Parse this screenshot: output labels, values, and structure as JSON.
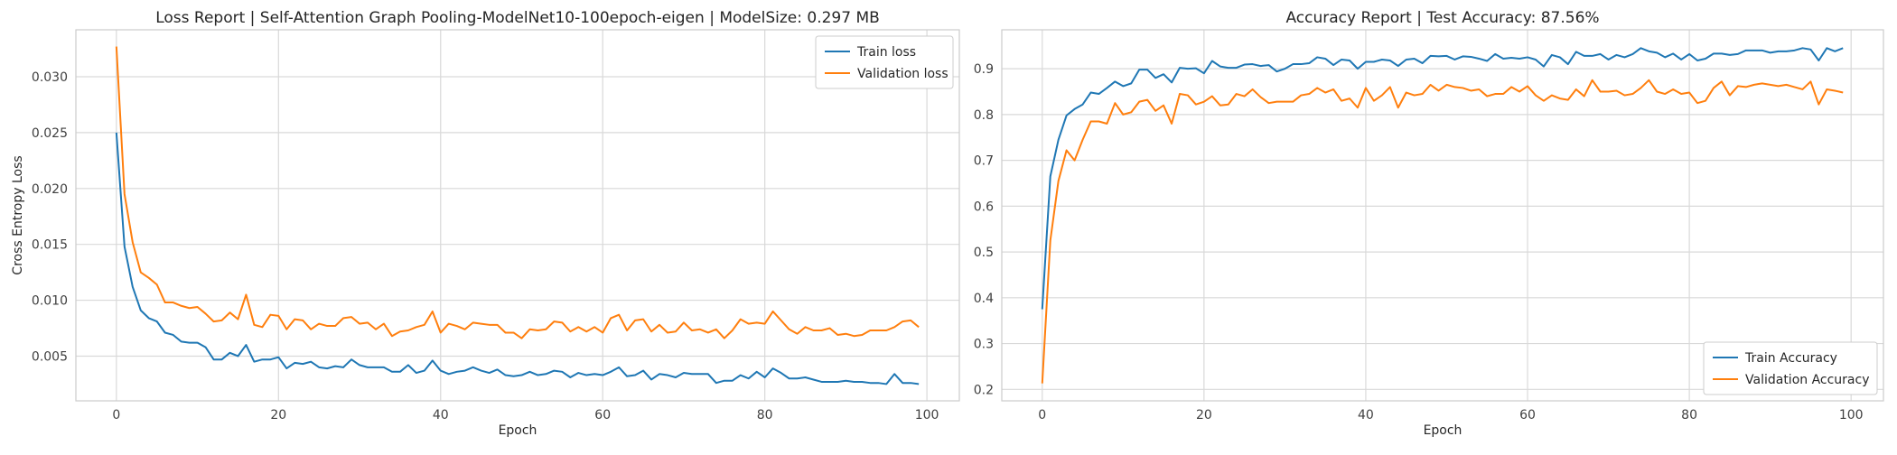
{
  "chart_data": [
    {
      "type": "line",
      "title": "Loss Report | Self-Attention Graph Pooling-ModelNet10-100epoch-eigen | ModelSize: 0.297 MB",
      "xlabel": "Epoch",
      "ylabel": "Cross Entropy Loss",
      "xlim": [
        -5,
        104
      ],
      "ylim": [
        0.001,
        0.0342
      ],
      "xticks": [
        0,
        20,
        40,
        60,
        80,
        100
      ],
      "xtick_labels": [
        "0",
        "20",
        "40",
        "60",
        "80",
        "100"
      ],
      "yticks": [
        0.005,
        0.01,
        0.015,
        0.02,
        0.025,
        0.03
      ],
      "ytick_labels": [
        "0.005",
        "0.010",
        "0.015",
        "0.020",
        "0.025",
        "0.030"
      ],
      "grid": true,
      "legend_position": "top-right",
      "series": [
        {
          "name": "Train loss",
          "color": "#1f77b4",
          "values": [
            0.025,
            0.0148,
            0.0112,
            0.0091,
            0.0084,
            0.0081,
            0.0071,
            0.0069,
            0.0063,
            0.0062,
            0.0062,
            0.0058,
            0.0047,
            0.0047,
            0.0053,
            0.005,
            0.006,
            0.0045,
            0.0047,
            0.0047,
            0.0049,
            0.0039,
            0.0044,
            0.0043,
            0.0045,
            0.004,
            0.0039,
            0.0041,
            0.004,
            0.0047,
            0.0042,
            0.004,
            0.004,
            0.004,
            0.0036,
            0.0036,
            0.0042,
            0.0035,
            0.0037,
            0.0046,
            0.0037,
            0.0034,
            0.0036,
            0.0037,
            0.004,
            0.0037,
            0.0035,
            0.0038,
            0.0033,
            0.0032,
            0.0033,
            0.0036,
            0.0033,
            0.0034,
            0.0037,
            0.0036,
            0.0031,
            0.0035,
            0.0033,
            0.0034,
            0.0033,
            0.0036,
            0.004,
            0.0032,
            0.0033,
            0.0037,
            0.0029,
            0.0034,
            0.0033,
            0.0031,
            0.0035,
            0.0034,
            0.0034,
            0.0034,
            0.0026,
            0.0028,
            0.0028,
            0.0033,
            0.003,
            0.0036,
            0.0031,
            0.0039,
            0.0035,
            0.003,
            0.003,
            0.0031,
            0.0029,
            0.0027,
            0.0027,
            0.0027,
            0.0028,
            0.0027,
            0.0027,
            0.0026,
            0.0026,
            0.0025,
            0.0034,
            0.0026,
            0.0026,
            0.0025
          ]
        },
        {
          "name": "Validation loss",
          "color": "#ff7f0e",
          "values": [
            0.0327,
            0.0195,
            0.0152,
            0.0125,
            0.012,
            0.0114,
            0.0098,
            0.0098,
            0.0095,
            0.0093,
            0.0094,
            0.0088,
            0.0081,
            0.0082,
            0.0089,
            0.0083,
            0.0105,
            0.0078,
            0.0076,
            0.0087,
            0.0086,
            0.0074,
            0.0083,
            0.0082,
            0.0074,
            0.0079,
            0.0077,
            0.0077,
            0.0084,
            0.0085,
            0.0079,
            0.008,
            0.0074,
            0.0079,
            0.0068,
            0.0072,
            0.0073,
            0.0076,
            0.0078,
            0.009,
            0.0071,
            0.0079,
            0.0077,
            0.0074,
            0.008,
            0.0079,
            0.0078,
            0.0078,
            0.0071,
            0.0071,
            0.0066,
            0.0074,
            0.0073,
            0.0074,
            0.0081,
            0.008,
            0.0072,
            0.0076,
            0.0072,
            0.0076,
            0.0071,
            0.0084,
            0.0087,
            0.0073,
            0.0082,
            0.0083,
            0.0072,
            0.0078,
            0.0071,
            0.0072,
            0.008,
            0.0073,
            0.0074,
            0.0071,
            0.0074,
            0.0066,
            0.0073,
            0.0083,
            0.0079,
            0.008,
            0.0079,
            0.009,
            0.0082,
            0.0074,
            0.007,
            0.0076,
            0.0073,
            0.0073,
            0.0075,
            0.0069,
            0.007,
            0.0068,
            0.0069,
            0.0073,
            0.0073,
            0.0073,
            0.0076,
            0.0081,
            0.0082,
            0.0076
          ]
        }
      ]
    },
    {
      "type": "line",
      "title": "Accuracy Report | Test Accuracy: 87.56%",
      "xlabel": "Epoch",
      "ylabel": "",
      "xlim": [
        -5,
        104
      ],
      "ylim": [
        0.175,
        0.985
      ],
      "xticks": [
        0,
        20,
        40,
        60,
        80,
        100
      ],
      "xtick_labels": [
        "0",
        "20",
        "40",
        "60",
        "80",
        "100"
      ],
      "yticks": [
        0.2,
        0.3,
        0.4,
        0.5,
        0.6,
        0.7,
        0.8,
        0.9
      ],
      "ytick_labels": [
        "0.2",
        "0.3",
        "0.4",
        "0.5",
        "0.6",
        "0.7",
        "0.8",
        "0.9"
      ],
      "grid": true,
      "legend_position": "bottom-right",
      "series": [
        {
          "name": "Train Accuracy",
          "color": "#1f77b4",
          "values": [
            0.375,
            0.665,
            0.745,
            0.798,
            0.812,
            0.822,
            0.848,
            0.845,
            0.858,
            0.872,
            0.862,
            0.868,
            0.898,
            0.898,
            0.88,
            0.888,
            0.87,
            0.902,
            0.9,
            0.901,
            0.89,
            0.917,
            0.905,
            0.902,
            0.902,
            0.909,
            0.91,
            0.906,
            0.908,
            0.894,
            0.9,
            0.91,
            0.91,
            0.912,
            0.925,
            0.922,
            0.908,
            0.92,
            0.918,
            0.9,
            0.915,
            0.915,
            0.92,
            0.918,
            0.906,
            0.92,
            0.922,
            0.912,
            0.928,
            0.927,
            0.928,
            0.92,
            0.927,
            0.926,
            0.922,
            0.917,
            0.932,
            0.922,
            0.924,
            0.922,
            0.925,
            0.92,
            0.905,
            0.93,
            0.925,
            0.91,
            0.937,
            0.928,
            0.928,
            0.932,
            0.92,
            0.93,
            0.925,
            0.932,
            0.945,
            0.938,
            0.935,
            0.925,
            0.933,
            0.92,
            0.932,
            0.918,
            0.922,
            0.933,
            0.933,
            0.93,
            0.932,
            0.94,
            0.94,
            0.94,
            0.935,
            0.938,
            0.938,
            0.94,
            0.945,
            0.942,
            0.918,
            0.945,
            0.938,
            0.945
          ]
        },
        {
          "name": "Validation Accuracy",
          "color": "#ff7f0e",
          "values": [
            0.213,
            0.525,
            0.655,
            0.722,
            0.7,
            0.745,
            0.785,
            0.785,
            0.78,
            0.825,
            0.8,
            0.805,
            0.828,
            0.832,
            0.808,
            0.82,
            0.78,
            0.845,
            0.842,
            0.822,
            0.828,
            0.84,
            0.82,
            0.822,
            0.845,
            0.84,
            0.855,
            0.838,
            0.825,
            0.828,
            0.828,
            0.828,
            0.842,
            0.845,
            0.858,
            0.848,
            0.855,
            0.83,
            0.835,
            0.815,
            0.858,
            0.83,
            0.842,
            0.86,
            0.815,
            0.848,
            0.842,
            0.845,
            0.865,
            0.852,
            0.865,
            0.86,
            0.858,
            0.852,
            0.855,
            0.84,
            0.845,
            0.845,
            0.86,
            0.85,
            0.862,
            0.842,
            0.83,
            0.842,
            0.835,
            0.832,
            0.855,
            0.84,
            0.875,
            0.85,
            0.85,
            0.852,
            0.842,
            0.845,
            0.858,
            0.875,
            0.85,
            0.845,
            0.855,
            0.845,
            0.848,
            0.825,
            0.83,
            0.858,
            0.872,
            0.842,
            0.862,
            0.86,
            0.865,
            0.868,
            0.865,
            0.862,
            0.865,
            0.86,
            0.855,
            0.872,
            0.822,
            0.855,
            0.852,
            0.848
          ]
        }
      ]
    }
  ]
}
